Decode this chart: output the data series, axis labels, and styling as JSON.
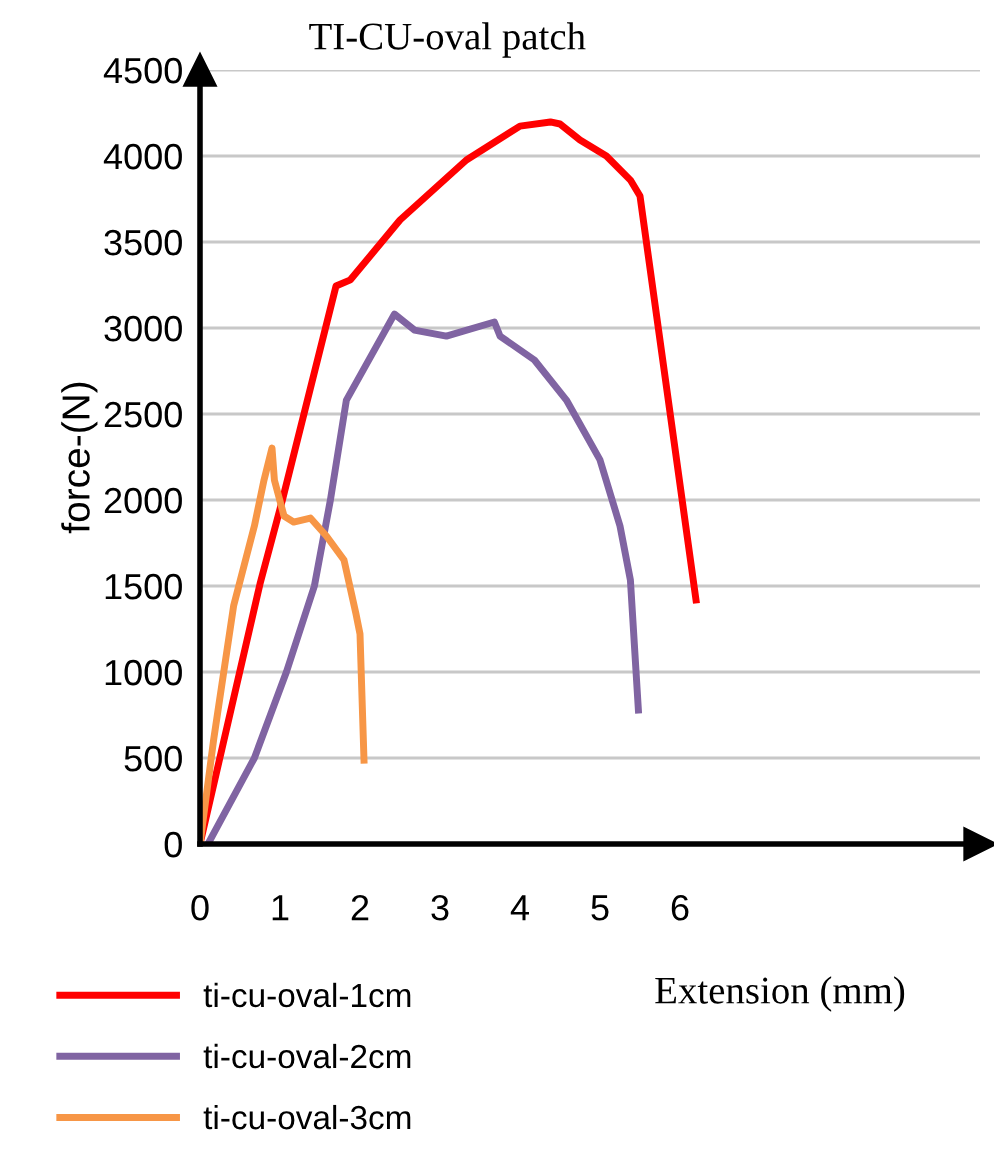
{
  "chart_data": {
    "type": "line",
    "title": "TI-CU-oval patch",
    "xlabel": "Extension (mm)",
    "ylabel": "force-(N)",
    "xlim": [
      0,
      9.75
    ],
    "ylim": [
      0,
      4500
    ],
    "xticks": [
      0,
      1,
      2,
      3,
      4,
      5,
      6
    ],
    "yticks": [
      0,
      500,
      1000,
      1500,
      2000,
      2500,
      3000,
      3500,
      4000,
      4500
    ],
    "grid": "y",
    "legend": "bottom left",
    "line_style": "solid",
    "series": [
      {
        "name": "ti-cu-oval-1cm",
        "color": "#ff0000",
        "x": [
          0,
          0.75,
          1.03,
          1.7,
          1.88,
          2.5,
          3.33,
          4.0,
          4.38,
          4.5,
          4.75,
          5.08,
          5.38,
          5.5,
          6.2
        ],
        "values": [
          0,
          1512,
          2000,
          3244,
          3280,
          3628,
          3977,
          4174,
          4198,
          4186,
          4093,
          4000,
          3860,
          3767,
          1419
        ]
      },
      {
        "name": "ti-cu-oval-2cm",
        "color": "#8064a2",
        "x": [
          0.1,
          0.68,
          1.08,
          1.43,
          1.63,
          1.83,
          2.43,
          2.68,
          3.08,
          3.68,
          3.75,
          4.18,
          4.58,
          5.0,
          5.25,
          5.38,
          5.48
        ],
        "values": [
          0,
          500,
          1000,
          1500,
          2000,
          2581,
          3081,
          2988,
          2953,
          3035,
          2953,
          2814,
          2581,
          2233,
          1849,
          1535,
          779
        ]
      },
      {
        "name": "ti-cu-oval-3cm",
        "color": "#f79646",
        "x": [
          0,
          0.17,
          0.42,
          0.68,
          0.8,
          0.9,
          0.93,
          1.05,
          1.17,
          1.38,
          1.58,
          1.8,
          1.95,
          2.0,
          2.05
        ],
        "values": [
          0,
          605,
          1384,
          1849,
          2116,
          2302,
          2116,
          1907,
          1872,
          1895,
          1791,
          1651,
          1337,
          1221,
          488
        ]
      }
    ]
  }
}
